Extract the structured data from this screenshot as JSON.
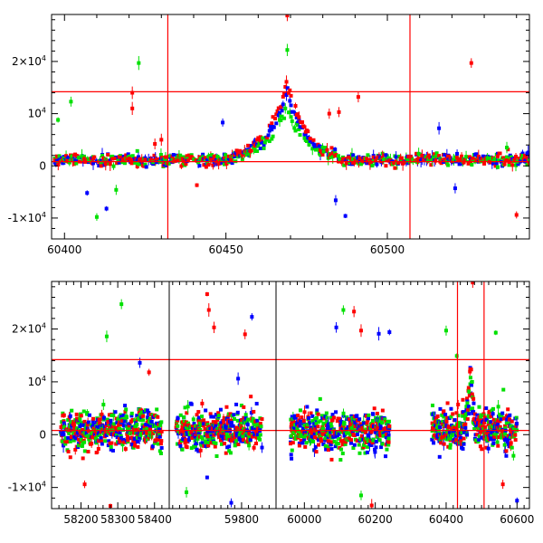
{
  "chart_data": [
    {
      "type": "scatter",
      "panel": "top",
      "title": "",
      "xlabel": "",
      "ylabel": "",
      "xlim": [
        60396,
        60544
      ],
      "ylim": [
        -14000,
        29000
      ],
      "x_ticks": [
        60400,
        60450,
        60500
      ],
      "x_tick_labels": [
        "60400",
        "60450",
        "60500"
      ],
      "y_ticks": [
        -10000,
        0,
        10000,
        20000
      ],
      "y_tick_labels": [
        {
          "mantissa": "-1×10",
          "exp": "4"
        },
        {
          "mantissa": "0",
          "exp": ""
        },
        {
          "mantissa": "10",
          "exp": "4"
        },
        {
          "mantissa": "2×10",
          "exp": "4"
        }
      ],
      "reference_lines": {
        "vertical": [
          60432,
          60507
        ],
        "horizontal": [
          14200,
          800
        ],
        "color": "#ff0000"
      },
      "series_colors": {
        "red": "#ff0000",
        "green": "#00e000",
        "blue": "#0000ff"
      },
      "features": {
        "baseline": 800,
        "flare_peak_x": 60469,
        "flare_peak_y": 16000,
        "flare_start_x": 60452,
        "flare_end_x": 60484
      },
      "outliers": [
        {
          "x": 60398,
          "y": 8800,
          "series": "green"
        },
        {
          "x": 60402,
          "y": 12300,
          "series": "green"
        },
        {
          "x": 60407,
          "y": -5200,
          "series": "blue"
        },
        {
          "x": 60410,
          "y": -9800,
          "series": "green"
        },
        {
          "x": 60413,
          "y": -8200,
          "series": "blue"
        },
        {
          "x": 60416,
          "y": -4600,
          "series": "green"
        },
        {
          "x": 60421,
          "y": 14000,
          "series": "red"
        },
        {
          "x": 60421,
          "y": 11000,
          "series": "red"
        },
        {
          "x": 60423,
          "y": 19700,
          "series": "green"
        },
        {
          "x": 60428,
          "y": 4200,
          "series": "red"
        },
        {
          "x": 60430,
          "y": 5000,
          "series": "red"
        },
        {
          "x": 60441,
          "y": -3700,
          "series": "red"
        },
        {
          "x": 60449,
          "y": 8300,
          "series": "blue"
        },
        {
          "x": 60469,
          "y": 28800,
          "series": "red"
        },
        {
          "x": 60469,
          "y": 22200,
          "series": "green"
        },
        {
          "x": 60482,
          "y": 10000,
          "series": "red"
        },
        {
          "x": 60484,
          "y": -6600,
          "series": "blue"
        },
        {
          "x": 60485,
          "y": 10300,
          "series": "red"
        },
        {
          "x": 60487,
          "y": -9600,
          "series": "blue"
        },
        {
          "x": 60491,
          "y": 13200,
          "series": "red"
        },
        {
          "x": 60526,
          "y": 19700,
          "series": "red"
        },
        {
          "x": 60531,
          "y": 1500,
          "series": "green"
        },
        {
          "x": 60537,
          "y": 3500,
          "series": "green"
        },
        {
          "x": 60540,
          "y": -9400,
          "series": "red"
        },
        {
          "x": 60516,
          "y": 7200,
          "series": "blue"
        },
        {
          "x": 60521,
          "y": -4300,
          "series": "blue"
        }
      ]
    },
    {
      "type": "scatter",
      "panel": "bottom",
      "title": "",
      "xlabel": "",
      "ylabel": "",
      "x_segments": [
        {
          "xlim": [
            58120,
            58440
          ],
          "x_ticks": [
            58200,
            58300,
            58400
          ],
          "x_tick_labels": [
            "58200",
            "58300",
            "58400"
          ],
          "data_range": [
            58145,
            58420
          ]
        },
        {
          "xlim": [
            59590,
            59900
          ],
          "x_ticks": [
            59800
          ],
          "x_tick_labels": [
            "59800"
          ],
          "data_range": [
            59610,
            59860
          ]
        },
        {
          "xlim": [
            59920,
            60635
          ],
          "x_ticks": [
            60000,
            60200,
            60400,
            60600
          ],
          "x_tick_labels": [
            "60000",
            "60200",
            "60400",
            "60600"
          ],
          "data_range": [
            59940,
            60600
          ]
        }
      ],
      "ylim": [
        -14000,
        29000
      ],
      "y_ticks": [
        -10000,
        0,
        10000,
        20000
      ],
      "y_tick_labels": [
        {
          "mantissa": "-1×10",
          "exp": "4"
        },
        {
          "mantissa": "0",
          "exp": ""
        },
        {
          "mantissa": "10",
          "exp": "4"
        },
        {
          "mantissa": "2×10",
          "exp": "4"
        }
      ],
      "reference_lines": {
        "vertical": [
          60432,
          60507
        ],
        "horizontal": [
          14200,
          800
        ],
        "color": "#ff0000"
      },
      "series_colors": {
        "red": "#ff0000",
        "green": "#00e000",
        "blue": "#0000ff"
      },
      "seasons": [
        [
          58145,
          58420
        ],
        [
          59610,
          59860
        ],
        [
          59960,
          60240
        ],
        [
          60360,
          60600
        ]
      ],
      "features": {
        "baseline": 800,
        "flare_peak_x": 60469,
        "flare_peak_y": 16800
      },
      "outliers": [
        {
          "x": 58270,
          "y": 18600,
          "series": "green"
        },
        {
          "x": 58310,
          "y": 24700,
          "series": "green"
        },
        {
          "x": 58360,
          "y": 13600,
          "series": "blue"
        },
        {
          "x": 58385,
          "y": 11800,
          "series": "red"
        },
        {
          "x": 58210,
          "y": -9400,
          "series": "red"
        },
        {
          "x": 58280,
          "y": -13500,
          "series": "red"
        },
        {
          "x": 59700,
          "y": 26600,
          "series": "red"
        },
        {
          "x": 59705,
          "y": 23600,
          "series": "red"
        },
        {
          "x": 59720,
          "y": 20300,
          "series": "red"
        },
        {
          "x": 59830,
          "y": 22300,
          "series": "blue"
        },
        {
          "x": 59810,
          "y": 19000,
          "series": "red"
        },
        {
          "x": 59790,
          "y": 10600,
          "series": "blue"
        },
        {
          "x": 59640,
          "y": -10900,
          "series": "green"
        },
        {
          "x": 59700,
          "y": -8100,
          "series": "blue"
        },
        {
          "x": 59770,
          "y": -12900,
          "series": "blue"
        },
        {
          "x": 60110,
          "y": 23600,
          "series": "green"
        },
        {
          "x": 60140,
          "y": 23300,
          "series": "red"
        },
        {
          "x": 60090,
          "y": 20300,
          "series": "blue"
        },
        {
          "x": 60160,
          "y": 19700,
          "series": "red"
        },
        {
          "x": 60210,
          "y": 19100,
          "series": "blue"
        },
        {
          "x": 60240,
          "y": 19400,
          "series": "blue"
        },
        {
          "x": 60160,
          "y": -11500,
          "series": "green"
        },
        {
          "x": 60190,
          "y": -13400,
          "series": "red"
        },
        {
          "x": 60400,
          "y": 19700,
          "series": "green"
        },
        {
          "x": 60430,
          "y": 14900,
          "series": "green"
        },
        {
          "x": 60475,
          "y": 28800,
          "series": "red"
        },
        {
          "x": 60540,
          "y": 19300,
          "series": "green"
        },
        {
          "x": 60560,
          "y": -9400,
          "series": "red"
        },
        {
          "x": 60600,
          "y": -12500,
          "series": "blue"
        },
        {
          "x": 60590,
          "y": -4000,
          "series": "green"
        }
      ]
    }
  ]
}
